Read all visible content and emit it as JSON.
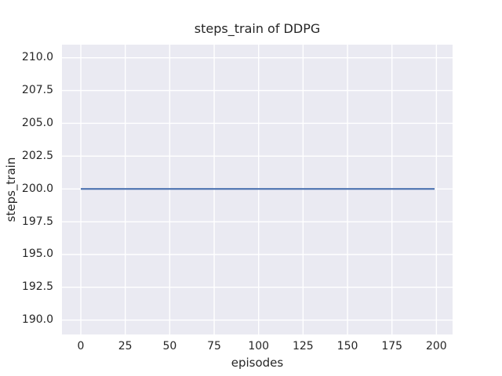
{
  "chart_data": {
    "type": "line",
    "title": "steps_train of DDPG",
    "xlabel": "episodes",
    "ylabel": "steps_train",
    "xlim": [
      -10.6,
      209.1
    ],
    "ylim": [
      188.9,
      211.0
    ],
    "xticks": [
      0,
      25,
      50,
      75,
      100,
      125,
      150,
      175,
      200
    ],
    "xtick_labels": [
      "0",
      "25",
      "50",
      "75",
      "100",
      "125",
      "150",
      "175",
      "200"
    ],
    "yticks": [
      190.0,
      192.5,
      195.0,
      197.5,
      200.0,
      202.5,
      205.0,
      207.5,
      210.0
    ],
    "ytick_labels": [
      "190.0",
      "192.5",
      "195.0",
      "197.5",
      "200.0",
      "202.5",
      "205.0",
      "207.5",
      "210.0"
    ],
    "grid": true,
    "legend": false,
    "series": [
      {
        "name": "steps_train",
        "color": "#4c72b0",
        "x": [
          0,
          199
        ],
        "y": [
          200,
          200
        ]
      }
    ],
    "colors": {
      "figure_background": "#ffffff",
      "axes_background": "#eaeaf2",
      "gridline": "#ffffff",
      "text": "#262626"
    }
  }
}
